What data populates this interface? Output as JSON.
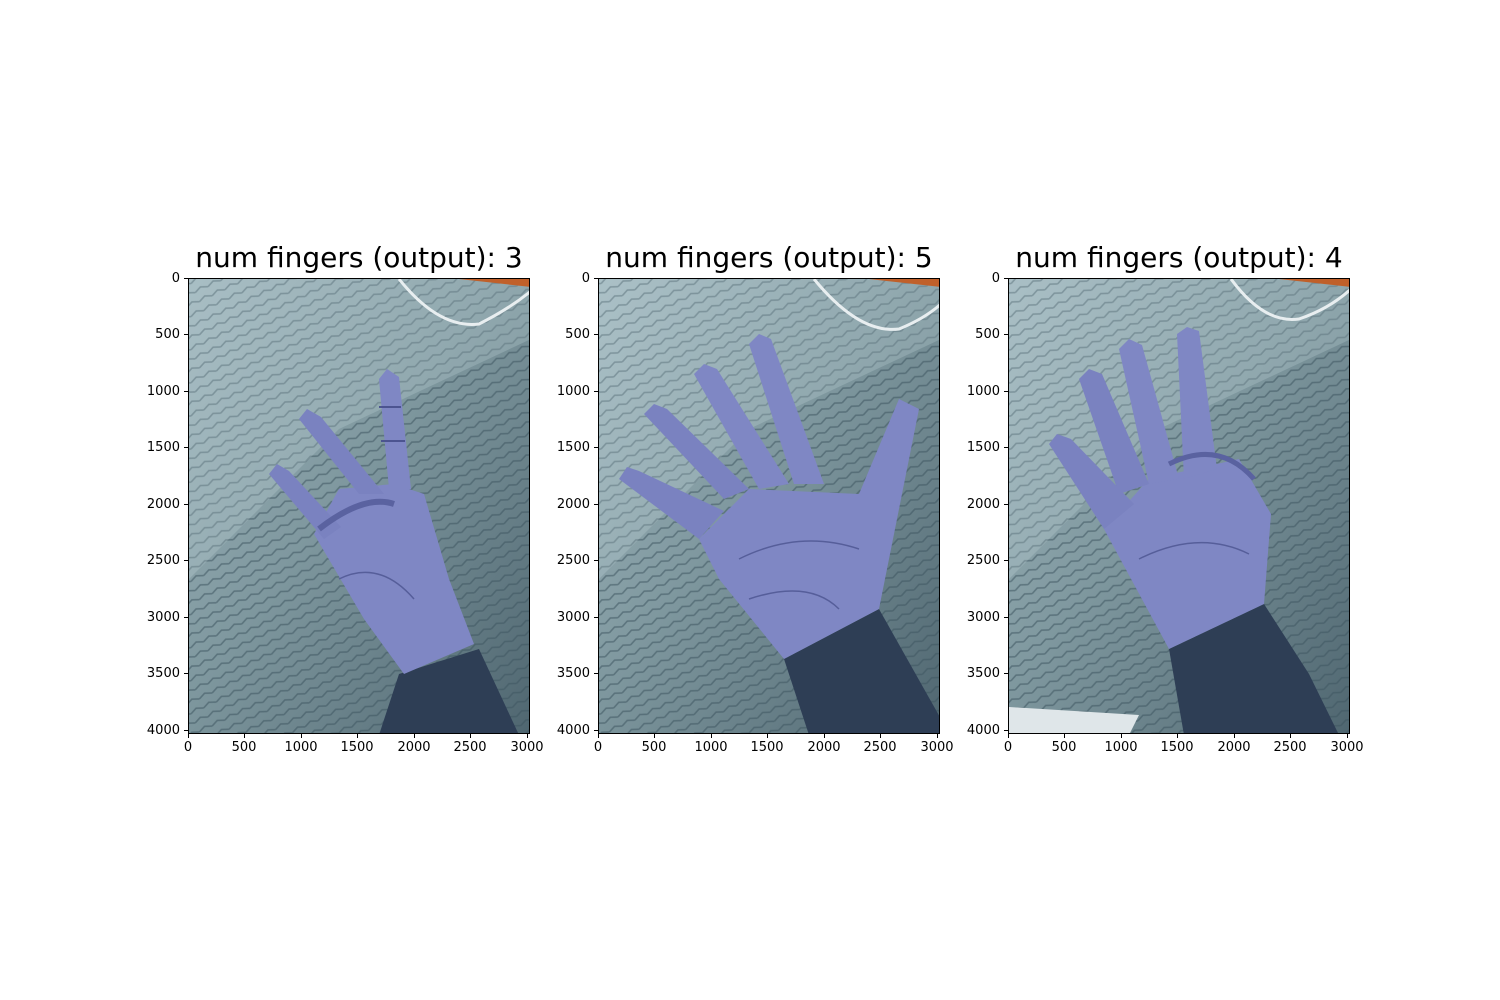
{
  "figure": {
    "panels": [
      {
        "title": "num fingers (output): 3",
        "image": "hand-three-fingers-photo"
      },
      {
        "title": "num fingers (output): 5",
        "image": "hand-open-palm-photo"
      },
      {
        "title": "num fingers (output): 4",
        "image": "hand-four-fingers-photo"
      }
    ],
    "axes": {
      "x_ticks": [
        "0",
        "500",
        "1000",
        "1500",
        "2000",
        "2500",
        "3000"
      ],
      "y_ticks": [
        "0",
        "500",
        "1000",
        "1500",
        "2000",
        "2500",
        "3000",
        "3500",
        "4000"
      ],
      "xlim": [
        0,
        3024
      ],
      "ylim": [
        4032,
        0
      ]
    },
    "colors": {
      "skin": "#8088c6",
      "carpet": "#5e7a86",
      "background": "#ffffff"
    }
  }
}
